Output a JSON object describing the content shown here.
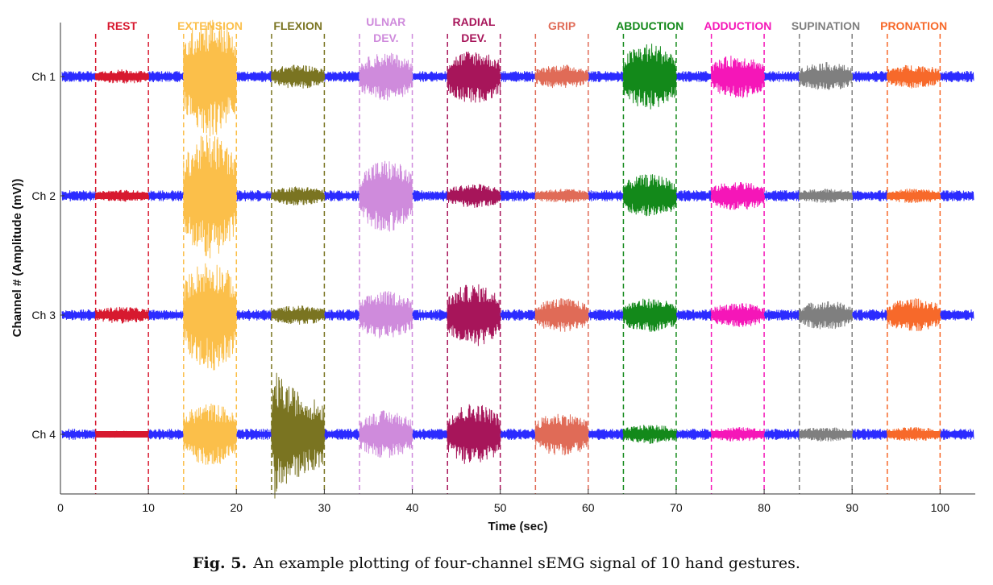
{
  "chart_data": {
    "type": "line",
    "xlabel": "Time (sec)",
    "ylabel": "Channel # (Amplitude (mV))",
    "xlim": [
      0,
      104
    ],
    "xticks": [
      0,
      10,
      20,
      30,
      40,
      50,
      60,
      70,
      80,
      90,
      100
    ],
    "channels": [
      "Ch 1",
      "Ch 2",
      "Ch 3",
      "Ch 4"
    ],
    "baseline_color": "#2b2bff",
    "gestures": [
      {
        "label": [
          "REST"
        ],
        "start": 4,
        "end": 10,
        "color": "#d7192f",
        "amp": [
          0.6,
          0.5,
          0.7,
          0.3
        ]
      },
      {
        "label": [
          "EXTENSION"
        ],
        "start": 14,
        "end": 20,
        "color": "#fbbf4a",
        "amp": [
          5.0,
          5.2,
          4.6,
          2.6
        ]
      },
      {
        "label": [
          "FLEXION"
        ],
        "start": 24,
        "end": 30,
        "color": "#7a7421",
        "amp": [
          1.0,
          0.8,
          0.8,
          5.4
        ]
      },
      {
        "label": [
          "ULNAR",
          "DEV."
        ],
        "start": 34,
        "end": 40,
        "color": "#cf8bdc",
        "amp": [
          2.0,
          3.0,
          2.0,
          2.0
        ]
      },
      {
        "label": [
          "RADIAL",
          "DEV."
        ],
        "start": 44,
        "end": 50,
        "color": "#a7155a",
        "amp": [
          2.2,
          1.0,
          2.6,
          2.6
        ]
      },
      {
        "label": [
          "GRIP"
        ],
        "start": 54,
        "end": 60,
        "color": "#e06b57",
        "amp": [
          1.0,
          0.6,
          1.4,
          1.8
        ]
      },
      {
        "label": [
          "ABDUCTION"
        ],
        "start": 64,
        "end": 70,
        "color": "#13891a",
        "amp": [
          2.8,
          1.8,
          1.4,
          0.8
        ]
      },
      {
        "label": [
          "ADDUCTION"
        ],
        "start": 74,
        "end": 80,
        "color": "#f516b8",
        "amp": [
          1.8,
          1.2,
          1.0,
          0.6
        ]
      },
      {
        "label": [
          "SUPINATION"
        ],
        "start": 84,
        "end": 90,
        "color": "#7f7f7f",
        "amp": [
          1.2,
          0.6,
          1.2,
          0.6
        ]
      },
      {
        "label": [
          "PRONATION"
        ],
        "start": 94,
        "end": 100,
        "color": "#f7692a",
        "amp": [
          1.0,
          0.6,
          1.4,
          0.6
        ]
      }
    ]
  },
  "caption": {
    "label": "Fig. 5.",
    "text": "An example plotting of four-channel sEMG signal of 10 hand gestures."
  }
}
